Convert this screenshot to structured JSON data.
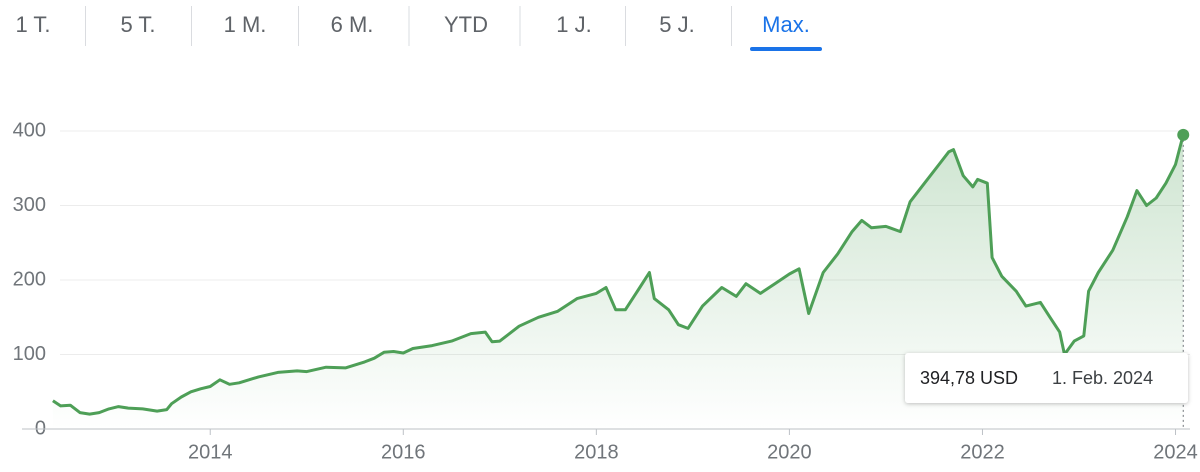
{
  "tabs": {
    "items": [
      "1 T.",
      "5 T.",
      "1 M.",
      "6 M.",
      "YTD",
      "1 J.",
      "5 J.",
      "Max."
    ],
    "active": 7
  },
  "chart_data": {
    "type": "line",
    "color": "#4e9f57",
    "x": [
      2012.37,
      2012.45,
      2012.55,
      2012.65,
      2012.75,
      2012.85,
      2012.95,
      2013.05,
      2013.15,
      2013.3,
      2013.45,
      2013.55,
      2013.6,
      2013.7,
      2013.8,
      2013.9,
      2014.0,
      2014.1,
      2014.2,
      2014.3,
      2014.5,
      2014.7,
      2014.9,
      2015.0,
      2015.2,
      2015.4,
      2015.6,
      2015.7,
      2015.8,
      2015.9,
      2016.0,
      2016.1,
      2016.3,
      2016.5,
      2016.7,
      2016.85,
      2016.92,
      2017.0,
      2017.2,
      2017.4,
      2017.6,
      2017.8,
      2018.0,
      2018.1,
      2018.2,
      2018.3,
      2018.45,
      2018.55,
      2018.6,
      2018.75,
      2018.85,
      2018.95,
      2019.1,
      2019.3,
      2019.45,
      2019.55,
      2019.7,
      2019.85,
      2020.0,
      2020.1,
      2020.2,
      2020.35,
      2020.5,
      2020.65,
      2020.75,
      2020.85,
      2021.0,
      2021.15,
      2021.25,
      2021.4,
      2021.55,
      2021.65,
      2021.7,
      2021.8,
      2021.9,
      2021.95,
      2022.05,
      2022.1,
      2022.2,
      2022.35,
      2022.45,
      2022.6,
      2022.7,
      2022.8,
      2022.85,
      2022.95,
      2023.05,
      2023.1,
      2023.2,
      2023.35,
      2023.5,
      2023.6,
      2023.7,
      2023.8,
      2023.9,
      2024.0,
      2024.08
    ],
    "values": [
      38,
      31,
      32,
      22,
      20,
      22,
      27,
      30,
      28,
      27,
      24,
      26,
      34,
      43,
      50,
      54,
      57,
      66,
      60,
      62,
      70,
      76,
      78,
      77,
      83,
      82,
      90,
      95,
      103,
      104,
      102,
      108,
      112,
      118,
      128,
      130,
      117,
      118,
      138,
      150,
      158,
      175,
      182,
      190,
      160,
      160,
      190,
      210,
      175,
      160,
      140,
      135,
      165,
      190,
      178,
      195,
      182,
      195,
      208,
      215,
      155,
      210,
      235,
      265,
      280,
      270,
      272,
      265,
      305,
      330,
      355,
      372,
      375,
      340,
      325,
      335,
      330,
      230,
      205,
      185,
      165,
      170,
      150,
      130,
      100,
      118,
      125,
      185,
      210,
      240,
      285,
      320,
      300,
      310,
      330,
      355,
      394.78
    ],
    "xlim": [
      2012.05,
      2024.15
    ],
    "xticks": [
      2014,
      2016,
      2018,
      2020,
      2022,
      2024
    ],
    "ylim": [
      0,
      400
    ],
    "yticks": [
      0,
      100,
      200,
      300,
      400
    ],
    "grid": true,
    "tooltip": {
      "value": "394,78 USD",
      "date": "1. Feb. 2024"
    }
  }
}
